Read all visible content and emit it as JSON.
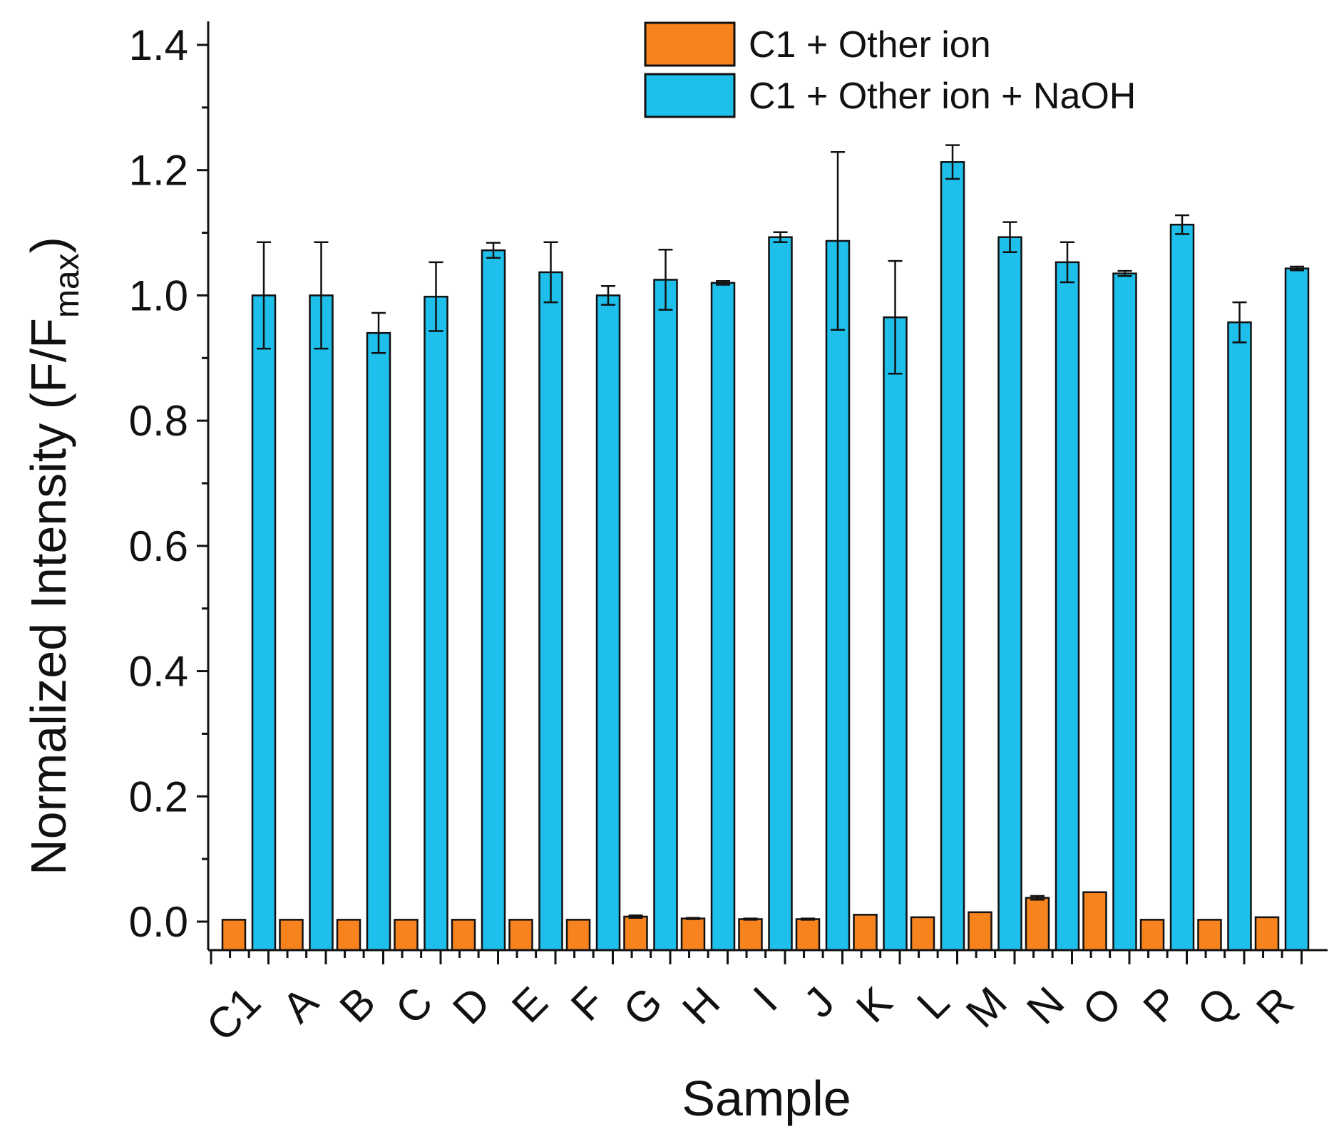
{
  "chart_data": {
    "type": "bar",
    "title": "",
    "xlabel": "Sample",
    "ylabel": {
      "main": "Normalized Intensity (F/F",
      "subscript": "max",
      "close": ")"
    },
    "ylim": [
      -0.05,
      1.4
    ],
    "yticks": [
      "0.0",
      "0.2",
      "0.4",
      "0.6",
      "0.8",
      "1.0",
      "1.2",
      "1.4"
    ],
    "categories": [
      "C1",
      "A",
      "B",
      "C",
      "D",
      "E",
      "F",
      "G",
      "H",
      "I",
      "J",
      "K",
      "L",
      "M",
      "N",
      "O",
      "P",
      "Q",
      "R"
    ],
    "legend_position": "top-right",
    "series": [
      {
        "name": "C1 + Other ion",
        "color": "#F7831E",
        "values": [
          0.003,
          0.003,
          0.003,
          0.003,
          0.003,
          0.003,
          0.003,
          0.008,
          0.005,
          0.004,
          0.004,
          0.011,
          0.007,
          0.015,
          0.038,
          0.047,
          0.003,
          0.003,
          0.007
        ],
        "errors": [
          0,
          0,
          0,
          0,
          0,
          0,
          0,
          0.002,
          0.001,
          0.001,
          0.001,
          0,
          0,
          0,
          0.003,
          0,
          0,
          0,
          0
        ]
      },
      {
        "name": "C1 + Other ion + NaOH",
        "color": "#1EBFEA",
        "values": [
          1.0,
          1.0,
          0.94,
          0.998,
          1.072,
          1.037,
          1.0,
          1.025,
          1.02,
          1.093,
          1.087,
          0.965,
          1.213,
          1.093,
          1.053,
          1.035,
          1.113,
          0.957,
          1.043
        ],
        "errors": [
          0.085,
          0.085,
          0.032,
          0.055,
          0.012,
          0.048,
          0.015,
          0.048,
          0.003,
          0.008,
          0.142,
          0.09,
          0.027,
          0.024,
          0.032,
          0.004,
          0.015,
          0.032,
          0.003
        ]
      }
    ]
  }
}
